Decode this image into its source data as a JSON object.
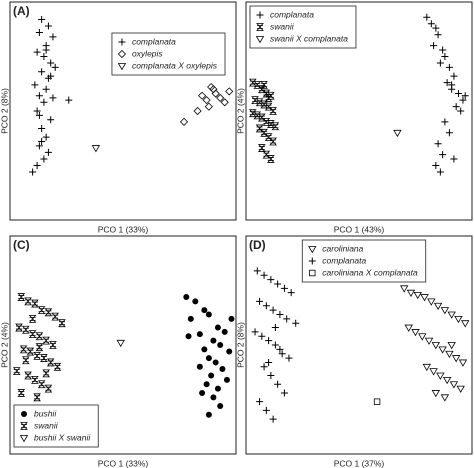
{
  "chart_data": [
    {
      "type": "scatter",
      "label": "(A)",
      "xlabel": "PCO 1 (33%)",
      "ylabel": "PCO 2 (8%)",
      "xlim": [
        0,
        100
      ],
      "ylim": [
        0,
        100
      ],
      "legend": "upper right",
      "series": [
        {
          "name": "complanata",
          "marker": "plus",
          "color": "#000000",
          "x": [
            14,
            17,
            13,
            19,
            16,
            12,
            15,
            18,
            20,
            14,
            17,
            11,
            16,
            13,
            19,
            15,
            12,
            18,
            14,
            16,
            13,
            17,
            15,
            12,
            10,
            26,
            14,
            16,
            18,
            13
          ],
          "values": [
            92,
            89,
            86,
            84,
            80,
            77,
            75,
            72,
            70,
            68,
            65,
            62,
            60,
            57,
            56,
            54,
            50,
            46,
            42,
            38,
            34,
            31,
            28,
            25,
            22,
            55,
            36,
            78,
            66,
            48
          ]
        },
        {
          "name": "oxylepis",
          "marker": "diamond",
          "color": "#000000",
          "x": [
            91,
            90,
            87,
            93,
            95,
            88,
            85,
            83,
            77,
            97,
            89
          ],
          "values": [
            58,
            60,
            55,
            56,
            54,
            52,
            57,
            50,
            45,
            59,
            61
          ]
        },
        {
          "name": "complanata X oxylepis",
          "marker": "triangle",
          "color": "#000000",
          "x": [
            38
          ],
          "values": [
            33
          ]
        }
      ]
    },
    {
      "type": "scatter",
      "label": "(B)",
      "xlabel": "PCO 1 (43%)",
      "ylabel": "PCO 2 (4%)",
      "xlim": [
        0,
        100
      ],
      "ylim": [
        0,
        100
      ],
      "legend": "upper left",
      "series": [
        {
          "name": "complanata",
          "marker": "plus",
          "color": "#000000",
          "x": [
            80,
            82,
            84,
            85,
            83,
            87,
            88,
            86,
            90,
            92,
            89,
            91,
            94,
            96,
            93,
            95,
            88,
            90,
            85,
            87,
            92,
            97,
            84,
            86,
            91
          ],
          "values": [
            93,
            90,
            88,
            85,
            80,
            78,
            75,
            72,
            70,
            66,
            63,
            60,
            58,
            55,
            52,
            50,
            45,
            40,
            35,
            30,
            28,
            57,
            25,
            22,
            62
          ]
        },
        {
          "name": "swanii",
          "marker": "hourglass",
          "color": "#000000",
          "x": [
            3,
            5,
            7,
            9,
            11,
            4,
            6,
            8,
            10,
            12,
            3,
            5,
            7,
            9,
            11,
            13,
            6,
            8,
            10,
            12,
            7,
            9,
            11,
            8,
            10
          ],
          "values": [
            63,
            62,
            60,
            58,
            57,
            55,
            54,
            53,
            52,
            50,
            49,
            48,
            47,
            45,
            44,
            43,
            42,
            40,
            38,
            36,
            33,
            30,
            28,
            62,
            56
          ]
        },
        {
          "name": "swanii X complanata",
          "marker": "triangle",
          "color": "#000000",
          "x": [
            67
          ],
          "values": [
            40
          ]
        }
      ]
    },
    {
      "type": "scatter",
      "label": "(C)",
      "xlabel": "PCO 1 (33%)",
      "ylabel": "PCO 2 (4%)",
      "xlim": [
        0,
        100
      ],
      "ylim": [
        0,
        100
      ],
      "legend": "lower left",
      "series": [
        {
          "name": "bushii",
          "marker": "circle",
          "color": "#000000",
          "x": [
            78,
            82,
            86,
            80,
            88,
            92,
            84,
            95,
            90,
            86,
            93,
            97,
            88,
            91,
            84,
            94,
            89,
            96,
            87,
            92,
            85,
            90,
            79,
            98,
            93,
            88
          ],
          "values": [
            72,
            70,
            66,
            62,
            64,
            58,
            55,
            56,
            52,
            48,
            50,
            47,
            44,
            42,
            40,
            39,
            36,
            34,
            32,
            30,
            28,
            26,
            54,
            62,
            22,
            18
          ]
        },
        {
          "name": "swanii",
          "marker": "hourglass",
          "color": "#000000",
          "x": [
            5,
            8,
            11,
            14,
            17,
            20,
            23,
            4,
            7,
            10,
            13,
            16,
            19,
            6,
            9,
            12,
            15,
            18,
            21,
            3,
            8,
            11,
            14,
            17,
            5,
            10,
            13,
            16,
            7,
            12
          ],
          "values": [
            72,
            70,
            69,
            66,
            65,
            63,
            60,
            58,
            57,
            55,
            54,
            52,
            50,
            48,
            47,
            45,
            44,
            42,
            40,
            38,
            36,
            34,
            32,
            30,
            28,
            62,
            49,
            37,
            43,
            26
          ]
        },
        {
          "name": "bushii X swanii",
          "marker": "triangle",
          "color": "#000000",
          "x": [
            49
          ],
          "values": [
            51
          ]
        }
      ]
    },
    {
      "type": "scatter",
      "label": "(D)",
      "xlabel": "PCO 1 (37%)",
      "ylabel": "PCO 2 (8%)",
      "xlim": [
        0,
        100
      ],
      "ylim": [
        0,
        100
      ],
      "legend": "upper center",
      "series": [
        {
          "name": "caroliniana",
          "marker": "triangle",
          "color": "#000000",
          "x": [
            70,
            73,
            76,
            79,
            82,
            85,
            88,
            91,
            94,
            97,
            72,
            75,
            78,
            81,
            84,
            87,
            90,
            93,
            96,
            80,
            83,
            86,
            89,
            92,
            95,
            84,
            88,
            91
          ],
          "values": [
            76,
            74,
            73,
            72,
            70,
            68,
            66,
            64,
            62,
            60,
            58,
            56,
            54,
            52,
            50,
            48,
            46,
            44,
            42,
            40,
            38,
            36,
            34,
            32,
            30,
            28,
            26,
            50
          ]
        },
        {
          "name": "complanata",
          "marker": "plus",
          "color": "#000000",
          "x": [
            5,
            8,
            11,
            14,
            17,
            20,
            6,
            9,
            12,
            15,
            18,
            22,
            4,
            7,
            10,
            13,
            16,
            19,
            8,
            11,
            14,
            17,
            6,
            9,
            12,
            15,
            10,
            13
          ],
          "values": [
            84,
            82,
            80,
            78,
            76,
            74,
            70,
            68,
            66,
            64,
            62,
            60,
            56,
            54,
            52,
            50,
            46,
            44,
            40,
            36,
            32,
            28,
            24,
            20,
            16,
            48,
            42,
            58
          ]
        },
        {
          "name": "caroliniana X complanata",
          "marker": "square",
          "color": "#000000",
          "x": [
            58
          ],
          "values": [
            24
          ]
        }
      ]
    }
  ]
}
